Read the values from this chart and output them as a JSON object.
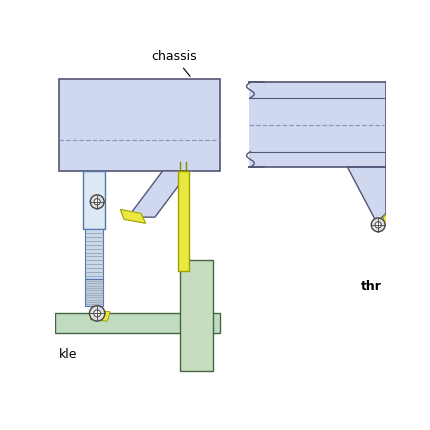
{
  "bg_color": "#ffffff",
  "chassis_color": "#d0d8f0",
  "chassis_edge": "#555577",
  "axle_color": "#c0dcc0",
  "axle_edge": "#446644",
  "yellow_color": "#e8e840",
  "yellow_edge": "#a0a000",
  "strut_color": "#d8e8f8",
  "strut_edge": "#5577aa",
  "hatch_color": "#aabbcc",
  "bolt_color": "#e0e0e0",
  "bolt_edge": "#444444",
  "label_chassis": "chassis",
  "label_axle": "kle",
  "label_thr": "thr"
}
